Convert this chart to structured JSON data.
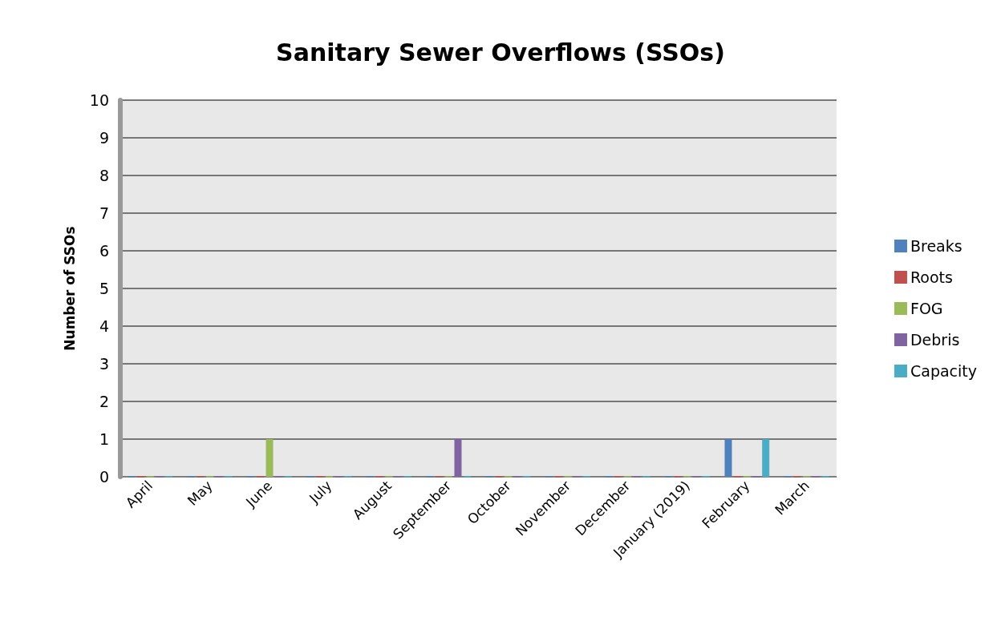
{
  "chart_data": {
    "type": "bar",
    "title": "Sanitary Sewer Overflows (SSOs)",
    "ylabel": "Number of SSOs",
    "categories": [
      "April",
      "May",
      "June",
      "July",
      "August",
      "September",
      "October",
      "November",
      "December",
      "January (2019)",
      "February",
      "March"
    ],
    "series": [
      {
        "name": "Breaks",
        "color": "#4f81bd",
        "values": [
          0,
          0,
          0,
          0,
          0,
          0,
          0,
          0,
          0,
          0,
          1,
          0
        ]
      },
      {
        "name": "Roots",
        "color": "#c0504d",
        "values": [
          0,
          0,
          0,
          0,
          0,
          0,
          0,
          0,
          0,
          0,
          0,
          0
        ]
      },
      {
        "name": "FOG",
        "color": "#9bbb59",
        "values": [
          0,
          0,
          1,
          0,
          0,
          0,
          0,
          0,
          0,
          0,
          0,
          0
        ]
      },
      {
        "name": "Debris",
        "color": "#8064a2",
        "values": [
          0,
          0,
          0,
          0,
          0,
          1,
          0,
          0,
          0,
          0,
          0,
          0
        ]
      },
      {
        "name": "Capacity",
        "color": "#4bacc6",
        "values": [
          0,
          0,
          0,
          0,
          0,
          0,
          0,
          0,
          0,
          0,
          1,
          0
        ]
      }
    ],
    "ylim": [
      0,
      10
    ],
    "yticks": [
      0,
      1,
      2,
      3,
      4,
      5,
      6,
      7,
      8,
      9,
      10
    ],
    "grid": "y",
    "legend": "right"
  }
}
